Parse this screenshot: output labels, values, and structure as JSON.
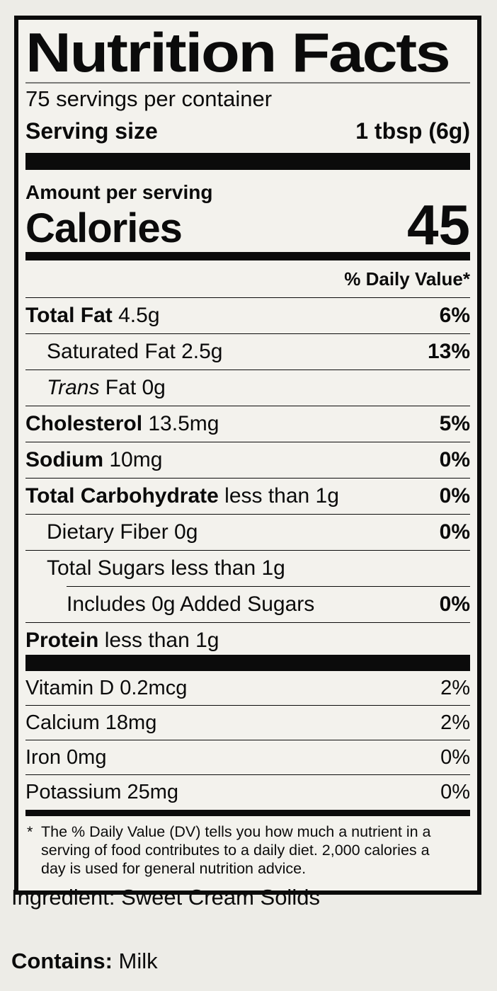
{
  "label": {
    "title": "Nutrition Facts",
    "servings_per_container": "75 servings per container",
    "serving_size": {
      "label": "Serving size",
      "value": "1 tbsp (6g)"
    },
    "amount_per_serving": "Amount per serving",
    "calories": {
      "label": "Calories",
      "value": "45"
    },
    "daily_value_header": "% Daily Value*",
    "nutrient_rows": [
      {
        "parts": [
          {
            "text": "Total Fat",
            "bold": true
          },
          {
            "text": " 4.5g"
          }
        ],
        "percent": "6%",
        "percent_bold": true,
        "indent": 0
      },
      {
        "parts": [
          {
            "text": "Saturated Fat 2.5g"
          }
        ],
        "percent": "13%",
        "percent_bold": true,
        "indent": 1
      },
      {
        "parts": [
          {
            "text": "Trans",
            "italic": true
          },
          {
            "text": " Fat 0g"
          }
        ],
        "percent": "",
        "indent": 1
      },
      {
        "parts": [
          {
            "text": "Cholesterol",
            "bold": true
          },
          {
            "text": " 13.5mg"
          }
        ],
        "percent": "5%",
        "percent_bold": true,
        "indent": 0
      },
      {
        "parts": [
          {
            "text": "Sodium",
            "bold": true
          },
          {
            "text": " 10mg"
          }
        ],
        "percent": "0%",
        "percent_bold": true,
        "indent": 0
      },
      {
        "parts": [
          {
            "text": "Total Carbohydrate",
            "bold": true
          },
          {
            "text": " less than 1g"
          }
        ],
        "percent": "0%",
        "percent_bold": true,
        "indent": 0
      },
      {
        "parts": [
          {
            "text": "Dietary Fiber 0g"
          }
        ],
        "percent": "0%",
        "percent_bold": true,
        "indent": 1
      },
      {
        "parts": [
          {
            "text": "Total Sugars less than 1g"
          }
        ],
        "percent": "",
        "indent": 1,
        "separator_indent": true
      },
      {
        "parts": [
          {
            "text": "Includes 0g Added Sugars"
          }
        ],
        "percent": "0%",
        "percent_bold": true,
        "indent": 2
      },
      {
        "parts": [
          {
            "text": "Protein",
            "bold": true
          },
          {
            "text": " less than 1g"
          }
        ],
        "percent": "",
        "indent": 0,
        "last": true,
        "protein": true
      }
    ],
    "vitamin_rows": [
      {
        "parts": [
          {
            "text": "Vitamin D 0.2mcg"
          }
        ],
        "percent": "2%"
      },
      {
        "parts": [
          {
            "text": "Calcium 18mg"
          }
        ],
        "percent": "2%"
      },
      {
        "parts": [
          {
            "text": "Iron 0mg"
          }
        ],
        "percent": "0%"
      },
      {
        "parts": [
          {
            "text": "Potassium 25mg"
          }
        ],
        "percent": "0%",
        "last": true
      }
    ],
    "footnote": {
      "asterisk": "*",
      "text": "The % Daily Value (DV) tells you how much a nutrient in a serving of food contributes to a daily diet. 2,000 calories a day is used for general nutrition advice."
    }
  },
  "ingredient": {
    "label": "Ingredient:",
    "value": " Sweet Cream Solids"
  },
  "contains": {
    "label": "Contains:",
    "value": " Milk"
  },
  "colors": {
    "page_bg": "#edece7",
    "label_bg": "#f3f2ed",
    "ink": "#0b0b0b",
    "title_rule": "#7a7a78"
  }
}
